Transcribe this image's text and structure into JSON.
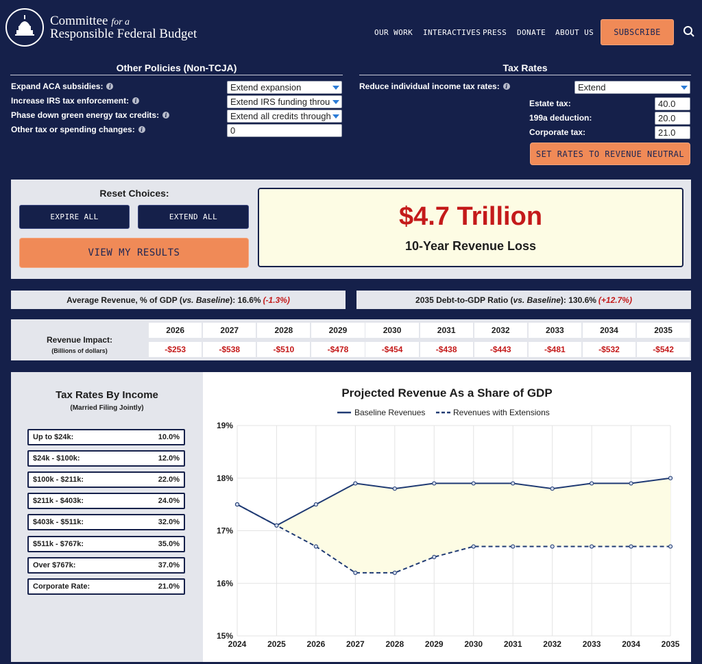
{
  "header": {
    "logo_line1_a": "Committee ",
    "logo_line1_b": "for a",
    "logo_line2": "Responsible Federal Budget",
    "nav": [
      "OUR WORK",
      "INTERACTIVES",
      "PRESS",
      "DONATE",
      "ABOUT US"
    ],
    "subscribe": "SUBSCRIBE",
    "icons": {
      "search": "search-icon",
      "logo": "capitol-seal-icon"
    }
  },
  "other_policies": {
    "title": "Other Policies (Non-TCJA)",
    "rows": [
      {
        "label": "Expand ACA subsidies:",
        "value": "Extend expansion",
        "type": "select"
      },
      {
        "label": "Increase IRS tax enforcement:",
        "value": "Extend IRS funding through",
        "type": "select"
      },
      {
        "label": "Phase down green energy tax credits:",
        "value": "Extend all credits through",
        "type": "select"
      },
      {
        "label": "Other tax or spending changes:",
        "value": "0",
        "type": "input"
      }
    ]
  },
  "tax_rates": {
    "title": "Tax Rates",
    "reduce_label": "Reduce individual income tax rates:",
    "reduce_value": "Extend",
    "estate_label": "Estate tax:",
    "estate_value": "40.0",
    "deduction_label": "199a deduction:",
    "deduction_value": "20.0",
    "corporate_label": "Corporate tax:",
    "corporate_value": "21.0",
    "neutral_button": "SET RATES TO REVENUE NEUTRAL"
  },
  "reset": {
    "title": "Reset Choices:",
    "expire": "EXPIRE ALL",
    "extend": "EXTEND ALL",
    "view": "VIEW MY RESULTS"
  },
  "result": {
    "amount": "$4.7 Trillion",
    "label": "10-Year Revenue Loss"
  },
  "stats": {
    "avg_prefix": "Average Revenue, % of GDP (",
    "avg_italic": "vs. Baseline",
    "avg_mid": "): 16.6%",
    "avg_change": "(-1.3%)",
    "debt_prefix": "2035 Debt-to-GDP Ratio (",
    "debt_italic": "vs. Baseline",
    "debt_mid": "): 130.6%",
    "debt_change": "(+12.7%)"
  },
  "revenue_impact": {
    "label": "Revenue Impact:",
    "sublabel": "(Billions of dollars)",
    "years": [
      "2026",
      "2027",
      "2028",
      "2029",
      "2030",
      "2031",
      "2032",
      "2033",
      "2034",
      "2035"
    ],
    "values": [
      "-$253",
      "-$538",
      "-$510",
      "-$478",
      "-$454",
      "-$438",
      "-$443",
      "-$481",
      "-$532",
      "-$542"
    ]
  },
  "income_rates": {
    "title": "Tax Rates By Income",
    "subtitle": "(Married Filing Jointly)",
    "rows": [
      {
        "label": "Up to $24k:",
        "rate": "10.0%"
      },
      {
        "label": "$24k - $100k:",
        "rate": "12.0%"
      },
      {
        "label": "$100k - $211k:",
        "rate": "22.0%"
      },
      {
        "label": "$211k - $403k:",
        "rate": "24.0%"
      },
      {
        "label": "$403k - $511k:",
        "rate": "32.0%"
      },
      {
        "label": "$511k - $767k:",
        "rate": "35.0%"
      },
      {
        "label": "Over $767k:",
        "rate": "37.0%"
      },
      {
        "label": "Corporate Rate:",
        "rate": "21.0%"
      }
    ]
  },
  "chart_data": {
    "type": "line",
    "title": "Projected Revenue As a Share of GDP",
    "x": [
      "2024",
      "2025",
      "2026",
      "2027",
      "2028",
      "2029",
      "2030",
      "2031",
      "2032",
      "2033",
      "2034",
      "2035"
    ],
    "series": [
      {
        "name": "Baseline Revenues",
        "values": [
          17.5,
          17.1,
          17.5,
          17.9,
          17.8,
          17.9,
          17.9,
          17.9,
          17.8,
          17.9,
          17.9,
          18.0
        ],
        "style": "solid"
      },
      {
        "name": "Revenues with Extensions",
        "values": [
          17.5,
          17.1,
          16.7,
          16.2,
          16.2,
          16.5,
          16.7,
          16.7,
          16.7,
          16.7,
          16.7,
          16.7
        ],
        "style": "dashed"
      }
    ],
    "yticks": [
      "15%",
      "16%",
      "17%",
      "18%",
      "19%"
    ],
    "ylim": [
      15,
      19
    ],
    "grid": true,
    "legend": "top",
    "colors": {
      "line": "#1f3a73",
      "fill": "#fdfce4"
    }
  }
}
